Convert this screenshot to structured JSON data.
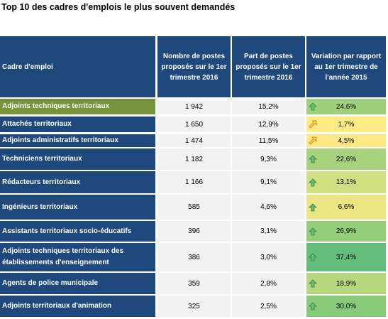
{
  "title": "Top 10 des cadres d'emplois le plus souvent demandés",
  "headers": {
    "col0": "Cadre d'emploi",
    "col1": "Nombre de postes proposés sur le 1er trimestre 2016",
    "col2": "Part de postes proposés sur le 1er trimestre 2016",
    "col3": "Variation par rapport au 1er trimestre de l'année 2015"
  },
  "rows": [
    {
      "cadre": "Adjoints techniques territoriaux",
      "nombre": "1 942",
      "part": "15,2%",
      "variation": "24,6%",
      "trend": "up",
      "color": "#9fd17c",
      "highlight": true
    },
    {
      "cadre": "Attachés territoriaux",
      "nombre": "1 650",
      "part": "12,9%",
      "variation": "1,7%",
      "trend": "up-right",
      "color": "#ffeb84",
      "highlight": false
    },
    {
      "cadre": "Adjoints administratifs territoriaux",
      "nombre": "1 474",
      "part": "11,5%",
      "variation": "4,5%",
      "trend": "up-right",
      "color": "#fde883",
      "highlight": false
    },
    {
      "cadre": "Techniciens territoriaux",
      "nombre": "1 182",
      "part": "9,3%",
      "variation": "22,6%",
      "trend": "up",
      "color": "#a6d27d",
      "highlight": false
    },
    {
      "cadre": "Rédacteurs territoriaux",
      "nombre": "1 166",
      "part": "9,1%",
      "variation": "13,1%",
      "trend": "up",
      "color": "#cfdf81",
      "highlight": false
    },
    {
      "cadre": "Ingénieurs territoriaux",
      "nombre": "585",
      "part": "4,6%",
      "variation": "6,6%",
      "trend": "up",
      "color": "#ebe583",
      "highlight": false
    },
    {
      "cadre": "Assistants territoriaux socio-éducatifs",
      "nombre": "396",
      "part": "3,1%",
      "variation": "26,9%",
      "trend": "up",
      "color": "#95ce7b",
      "highlight": false
    },
    {
      "cadre": "Adjoints techniques territoriaux des établissements d'enseignement",
      "nombre": "386",
      "part": "3,0%",
      "variation": "37,4%",
      "trend": "up",
      "color": "#63be7b",
      "highlight": false
    },
    {
      "cadre": "Agents de police municipale",
      "nombre": "359",
      "part": "2,8%",
      "variation": "18,9%",
      "trend": "up",
      "color": "#b7d77f",
      "highlight": false
    },
    {
      "cadre": "Adjoints territoriaux d'animation",
      "nombre": "325",
      "part": "2,5%",
      "variation": "30,0%",
      "trend": "up",
      "color": "#86ca7a",
      "highlight": false
    }
  ]
}
